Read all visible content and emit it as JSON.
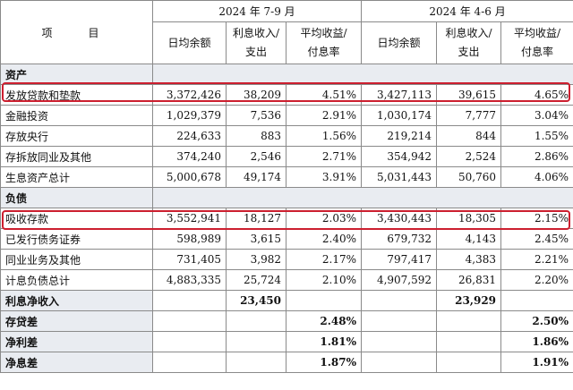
{
  "header": {
    "item_label": "项　目",
    "period1": "2024 年 7-9 月",
    "period2": "2024 年 4-6 月",
    "col_avg_balance": "日均余额",
    "col_interest": "利息收入/\n支出",
    "col_interest_l1": "利息收入/",
    "col_interest_l2": "支出",
    "col_rate_l1": "平均收益/",
    "col_rate_l2": "付息率"
  },
  "assets": {
    "section_label": "资产",
    "rows": [
      {
        "name": "发放贷款和垫款",
        "q3_balance": "3,372,426",
        "q3_interest": "38,209",
        "q3_rate": "4.51%",
        "q2_balance": "3,427,113",
        "q2_interest": "39,615",
        "q2_rate": "4.65%",
        "highlighted": true
      },
      {
        "name": "金融投资",
        "q3_balance": "1,029,379",
        "q3_interest": "7,536",
        "q3_rate": "2.91%",
        "q2_balance": "1,030,174",
        "q2_interest": "7,777",
        "q2_rate": "3.04%"
      },
      {
        "name": "存放央行",
        "q3_balance": "224,633",
        "q3_interest": "883",
        "q3_rate": "1.56%",
        "q2_balance": "219,214",
        "q2_interest": "844",
        "q2_rate": "1.55%"
      },
      {
        "name": "存拆放同业及其他",
        "q3_balance": "374,240",
        "q3_interest": "2,546",
        "q3_rate": "2.71%",
        "q2_balance": "354,942",
        "q2_interest": "2,524",
        "q2_rate": "2.86%"
      },
      {
        "name": "生息资产总计",
        "q3_balance": "5,000,678",
        "q3_interest": "49,174",
        "q3_rate": "3.91%",
        "q2_balance": "5,031,443",
        "q2_interest": "50,760",
        "q2_rate": "4.06%"
      }
    ]
  },
  "liabilities": {
    "section_label": "负债",
    "rows": [
      {
        "name": "吸收存款",
        "q3_balance": "3,552,941",
        "q3_interest": "18,127",
        "q3_rate": "2.03%",
        "q2_balance": "3,430,443",
        "q2_interest": "18,305",
        "q2_rate": "2.15%",
        "highlighted": true
      },
      {
        "name": "已发行债务证券",
        "q3_balance": "598,989",
        "q3_interest": "3,615",
        "q3_rate": "2.40%",
        "q2_balance": "679,732",
        "q2_interest": "4,143",
        "q2_rate": "2.45%"
      },
      {
        "name": "同业业务及其他",
        "q3_balance": "731,405",
        "q3_interest": "3,982",
        "q3_rate": "2.17%",
        "q2_balance": "797,417",
        "q2_interest": "4,383",
        "q2_rate": "2.21%"
      },
      {
        "name": "计息负债总计",
        "q3_balance": "4,883,335",
        "q3_interest": "25,724",
        "q3_rate": "2.10%",
        "q2_balance": "4,907,592",
        "q2_interest": "26,831",
        "q2_rate": "2.20%"
      }
    ]
  },
  "summary": [
    {
      "name": "利息净收入",
      "q3_interest": "23,450",
      "q2_interest": "23,929"
    },
    {
      "name": "存贷差",
      "q3_rate": "2.48%",
      "q2_rate": "2.50%"
    },
    {
      "name": "净利差",
      "q3_rate": "1.81%",
      "q2_rate": "1.86%"
    },
    {
      "name": "净息差",
      "q3_rate": "1.87%",
      "q2_rate": "1.91%"
    }
  ],
  "highlight_color": "#cc1f2f"
}
